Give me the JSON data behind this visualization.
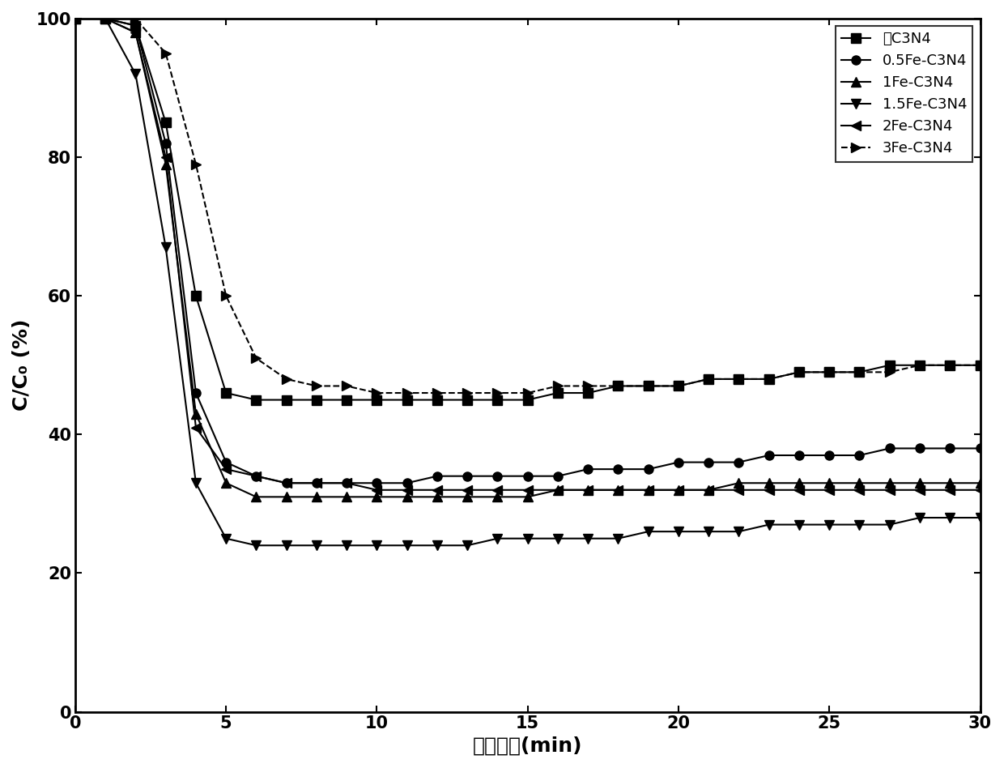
{
  "series": [
    {
      "label": "绯C3N4",
      "marker": "s",
      "linestyle": "-",
      "color": "#000000",
      "x": [
        0,
        1,
        2,
        3,
        4,
        5,
        6,
        7,
        8,
        9,
        10,
        11,
        12,
        13,
        14,
        15,
        16,
        17,
        18,
        19,
        20,
        21,
        22,
        23,
        24,
        25,
        26,
        27,
        28,
        29,
        30
      ],
      "y": [
        100,
        100,
        99,
        85,
        60,
        46,
        45,
        45,
        45,
        45,
        45,
        45,
        45,
        45,
        45,
        45,
        46,
        46,
        47,
        47,
        47,
        48,
        48,
        48,
        49,
        49,
        49,
        50,
        50,
        50,
        50
      ]
    },
    {
      "label": "0.5Fe-C3N4",
      "marker": "o",
      "linestyle": "-",
      "color": "#000000",
      "x": [
        0,
        1,
        2,
        3,
        4,
        5,
        6,
        7,
        8,
        9,
        10,
        11,
        12,
        13,
        14,
        15,
        16,
        17,
        18,
        19,
        20,
        21,
        22,
        23,
        24,
        25,
        26,
        27,
        28,
        29,
        30
      ],
      "y": [
        100,
        100,
        99,
        82,
        46,
        36,
        34,
        33,
        33,
        33,
        33,
        33,
        34,
        34,
        34,
        34,
        34,
        35,
        35,
        35,
        36,
        36,
        36,
        37,
        37,
        37,
        37,
        38,
        38,
        38,
        38
      ]
    },
    {
      "label": "1Fe-C3N4",
      "marker": "^",
      "linestyle": "-",
      "color": "#000000",
      "x": [
        0,
        1,
        2,
        3,
        4,
        5,
        6,
        7,
        8,
        9,
        10,
        11,
        12,
        13,
        14,
        15,
        16,
        17,
        18,
        19,
        20,
        21,
        22,
        23,
        24,
        25,
        26,
        27,
        28,
        29,
        30
      ],
      "y": [
        100,
        100,
        98,
        79,
        43,
        33,
        31,
        31,
        31,
        31,
        31,
        31,
        31,
        31,
        31,
        31,
        32,
        32,
        32,
        32,
        32,
        32,
        33,
        33,
        33,
        33,
        33,
        33,
        33,
        33,
        33
      ]
    },
    {
      "label": "1.5Fe-C3N4",
      "marker": "v",
      "linestyle": "-",
      "color": "#000000",
      "x": [
        0,
        1,
        2,
        3,
        4,
        5,
        6,
        7,
        8,
        9,
        10,
        11,
        12,
        13,
        14,
        15,
        16,
        17,
        18,
        19,
        20,
        21,
        22,
        23,
        24,
        25,
        26,
        27,
        28,
        29,
        30
      ],
      "y": [
        100,
        100,
        92,
        67,
        33,
        25,
        24,
        24,
        24,
        24,
        24,
        24,
        24,
        24,
        25,
        25,
        25,
        25,
        25,
        26,
        26,
        26,
        26,
        27,
        27,
        27,
        27,
        27,
        28,
        28,
        28
      ]
    },
    {
      "label": "2Fe-C3N4",
      "marker": "<",
      "linestyle": "-",
      "color": "#000000",
      "x": [
        0,
        1,
        2,
        3,
        4,
        5,
        6,
        7,
        8,
        9,
        10,
        11,
        12,
        13,
        14,
        15,
        16,
        17,
        18,
        19,
        20,
        21,
        22,
        23,
        24,
        25,
        26,
        27,
        28,
        29,
        30
      ],
      "y": [
        100,
        100,
        98,
        80,
        41,
        35,
        34,
        33,
        33,
        33,
        32,
        32,
        32,
        32,
        32,
        32,
        32,
        32,
        32,
        32,
        32,
        32,
        32,
        32,
        32,
        32,
        32,
        32,
        32,
        32,
        32
      ]
    },
    {
      "label": "3Fe-C3N4",
      "marker": ">",
      "linestyle": "--",
      "color": "#000000",
      "x": [
        0,
        1,
        2,
        3,
        4,
        5,
        6,
        7,
        8,
        9,
        10,
        11,
        12,
        13,
        14,
        15,
        16,
        17,
        18,
        19,
        20,
        21,
        22,
        23,
        24,
        25,
        26,
        27,
        28,
        29,
        30
      ],
      "y": [
        100,
        100,
        100,
        95,
        79,
        60,
        51,
        48,
        47,
        47,
        46,
        46,
        46,
        46,
        46,
        46,
        47,
        47,
        47,
        47,
        47,
        48,
        48,
        48,
        49,
        49,
        49,
        49,
        50,
        50,
        50
      ]
    }
  ],
  "xlabel": "光照时间(min)",
  "ylabel": "C/C₀ (%)",
  "xlim": [
    0,
    30
  ],
  "ylim": [
    0,
    100
  ],
  "xticks": [
    0,
    5,
    10,
    15,
    20,
    25,
    30
  ],
  "yticks": [
    0,
    20,
    40,
    60,
    80,
    100
  ],
  "background_color": "#ffffff",
  "legend_loc": "upper right",
  "marker_size": 8,
  "linewidth": 1.5,
  "title_fontsize": 16,
  "label_fontsize": 18,
  "tick_fontsize": 15,
  "legend_fontsize": 13
}
